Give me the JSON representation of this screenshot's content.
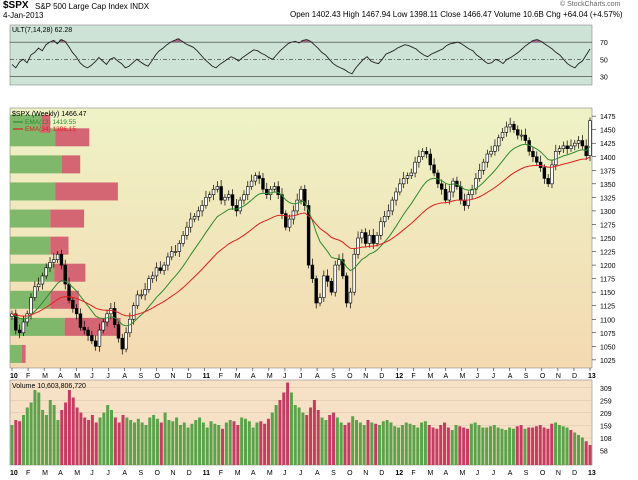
{
  "header": {
    "symbol": "$SPX",
    "name": "S&P 500 Large Cap Index INDX",
    "date": "4-Jan-2013",
    "watermark": "© StockCharts.com",
    "quote": "Open 1402.43  High 1467.94  Low 1398.11  Close 1466.47  Volume 10.6B  Chg +64.04 (+4.57%)"
  },
  "colors": {
    "rsi_bg": "#cce3d6",
    "price_bg_top": "#eef3c6",
    "price_bg_bottom": "#f4d9b1",
    "vol_bg": "#f7e1c6",
    "ema13": "#2d8a2d",
    "ema34": "#e02020",
    "ult_line": "#222222",
    "ult_fill": "#a0507a",
    "up_vol": "#5aa34a",
    "down_vol": "#c43c62",
    "vbp_up": "#7fb86a",
    "vbp_down": "#d46673"
  },
  "chart_data": [
    {
      "type": "line",
      "title": "ULT(7,14,28) 62.28",
      "ylim": [
        20,
        90
      ],
      "yticks": [
        "70",
        "50",
        "30"
      ],
      "levels": [
        70,
        50,
        30
      ],
      "series": [
        {
          "name": "ULT(7,14,28)",
          "values": [
            44,
            40,
            47,
            50,
            46,
            55,
            58,
            63,
            60,
            67,
            70,
            72,
            68,
            73,
            71,
            65,
            58,
            53,
            46,
            42,
            40,
            43,
            47,
            52,
            48,
            44,
            50,
            52,
            48,
            45,
            40,
            42,
            46,
            50,
            47,
            44,
            42,
            48,
            55,
            60,
            63,
            67,
            70,
            72,
            74,
            71,
            68,
            66,
            64,
            60,
            55,
            50,
            46,
            42,
            40,
            44,
            47,
            50,
            53,
            51,
            48,
            52,
            55,
            58,
            61,
            60,
            57,
            55,
            52,
            50,
            55,
            60,
            64,
            68,
            70,
            71,
            69,
            72,
            73,
            71,
            67,
            63,
            58,
            55,
            50,
            45,
            42,
            40,
            38,
            35,
            33,
            40,
            45,
            50,
            53,
            48,
            46,
            45,
            50,
            56,
            58,
            60,
            63,
            65,
            67,
            66,
            64,
            62,
            58,
            55,
            53,
            56,
            58,
            60,
            62,
            66,
            68,
            69,
            70,
            68,
            65,
            62,
            60,
            55,
            52,
            48,
            45,
            46,
            50,
            48,
            45,
            50,
            52,
            55,
            58,
            62,
            66,
            69,
            72,
            73,
            71,
            68,
            65,
            62,
            58,
            55,
            50,
            45,
            42,
            40,
            45,
            48,
            55,
            62
          ]
        }
      ]
    },
    {
      "type": "line",
      "title": "$SPX (Weekly) 1466.47",
      "ylim": [
        1010,
        1490
      ],
      "yticks": [
        "1475",
        "1450",
        "1425",
        "1400",
        "1375",
        "1350",
        "1325",
        "1300",
        "1275",
        "1250",
        "1225",
        "1200",
        "1175",
        "1150",
        "1125",
        "1100",
        "1075",
        "1050",
        "1025"
      ],
      "x_tick_labels": [
        "10",
        "F",
        "M",
        "A",
        "M",
        "J",
        "J",
        "A",
        "S",
        "O",
        "N",
        "D",
        "11",
        "F",
        "M",
        "A",
        "M",
        "J",
        "J",
        "A",
        "S",
        "O",
        "N",
        "D",
        "12",
        "F",
        "M",
        "A",
        "M",
        "J",
        "J",
        "A",
        "S",
        "O",
        "N",
        "D",
        "13"
      ],
      "series": [
        {
          "name": "$SPX",
          "values": [
            1110,
            1080,
            1075,
            1095,
            1110,
            1140,
            1160,
            1165,
            1180,
            1195,
            1205,
            1210,
            1220,
            1200,
            1165,
            1135,
            1120,
            1110,
            1085,
            1080,
            1070,
            1060,
            1050,
            1080,
            1095,
            1110,
            1120,
            1090,
            1065,
            1045,
            1075,
            1100,
            1125,
            1145,
            1145,
            1155,
            1175,
            1180,
            1195,
            1190,
            1200,
            1215,
            1225,
            1225,
            1240,
            1255,
            1270,
            1285,
            1290,
            1300,
            1310,
            1325,
            1330,
            1340,
            1345,
            1320,
            1325,
            1330,
            1310,
            1300,
            1320,
            1330,
            1345,
            1355,
            1365,
            1360,
            1340,
            1330,
            1340,
            1345,
            1330,
            1295,
            1270,
            1285,
            1300,
            1320,
            1340,
            1310,
            1200,
            1175,
            1130,
            1140,
            1180,
            1170,
            1150,
            1200,
            1210,
            1180,
            1130,
            1150,
            1220,
            1250,
            1260,
            1240,
            1255,
            1240,
            1255,
            1280,
            1290,
            1300,
            1320,
            1335,
            1350,
            1360,
            1365,
            1370,
            1390,
            1400,
            1410,
            1405,
            1385,
            1370,
            1350,
            1340,
            1320,
            1335,
            1355,
            1345,
            1320,
            1310,
            1330,
            1340,
            1360,
            1375,
            1390,
            1405,
            1410,
            1420,
            1435,
            1445,
            1455,
            1460,
            1450,
            1440,
            1440,
            1430,
            1410,
            1400,
            1390,
            1380,
            1360,
            1350,
            1385,
            1410,
            1415,
            1420,
            1415,
            1420,
            1425,
            1430,
            1420,
            1402,
            1466.47
          ]
        },
        {
          "name": "EMA(13) 1419.55",
          "values": []
        },
        {
          "name": "EMA(34) 1396.15",
          "values": []
        }
      ],
      "volume_by_price": [
        {
          "price": 1035,
          "up": 0.9,
          "down": 0.3
        },
        {
          "price": 1085,
          "up": 4.2,
          "down": 4.3
        },
        {
          "price": 1135,
          "up": 3.1,
          "down": 2.2
        },
        {
          "price": 1185,
          "up": 3.4,
          "down": 2.4
        },
        {
          "price": 1235,
          "up": 3.1,
          "down": 1.4
        },
        {
          "price": 1285,
          "up": 3.1,
          "down": 2.6
        },
        {
          "price": 1335,
          "up": 3.5,
          "down": 4.8
        },
        {
          "price": 1385,
          "up": 4.0,
          "down": 1.4
        },
        {
          "price": 1435,
          "up": 3.5,
          "down": 2.6
        },
        {
          "price": 1460,
          "up": 2.4,
          "down": 0.7
        }
      ]
    },
    {
      "type": "bar",
      "title": "Volume 10,603,806,720",
      "ylim": [
        0,
        340
      ],
      "yticks": [
        "309",
        "259",
        "209",
        "159",
        "108",
        "58"
      ],
      "values": [
        160,
        180,
        175,
        200,
        230,
        250,
        300,
        290,
        220,
        200,
        260,
        240,
        180,
        220,
        250,
        300,
        270,
        230,
        210,
        190,
        180,
        200,
        170,
        190,
        210,
        240,
        220,
        190,
        170,
        200,
        190,
        180,
        170,
        185,
        170,
        160,
        190,
        200,
        185,
        170,
        210,
        180,
        175,
        190,
        160,
        170,
        150,
        165,
        180,
        190,
        170,
        150,
        175,
        165,
        160,
        145,
        170,
        180,
        175,
        160,
        190,
        185,
        175,
        150,
        170,
        175,
        165,
        185,
        210,
        240,
        260,
        290,
        330,
        290,
        240,
        230,
        210,
        200,
        230,
        260,
        220,
        190,
        180,
        200,
        210,
        190,
        170,
        160,
        170,
        195,
        180,
        170,
        160,
        180,
        170,
        165,
        160,
        175,
        180,
        170,
        155,
        150,
        160,
        170,
        165,
        160,
        150,
        170,
        175,
        160,
        150,
        145,
        160,
        170,
        150,
        140,
        160,
        155,
        150,
        145,
        165,
        170,
        160,
        150,
        150,
        155,
        160,
        150,
        145,
        140,
        150,
        145,
        155,
        160,
        145,
        150,
        150,
        155,
        160,
        150,
        145,
        165,
        170,
        160,
        155,
        150,
        140,
        130,
        120,
        110,
        95,
        80
      ]
    }
  ]
}
